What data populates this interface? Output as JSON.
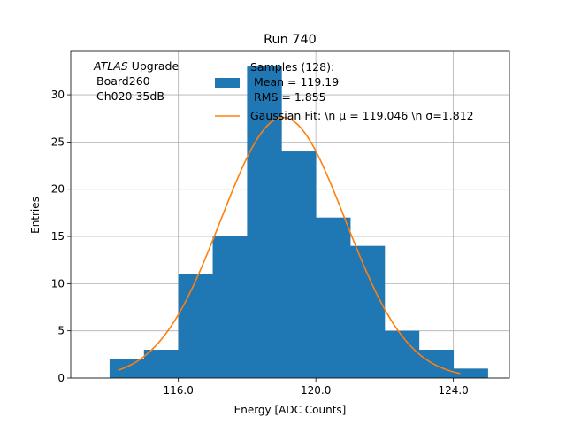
{
  "chart_data": {
    "type": "bar",
    "title": "Run 740",
    "xlabel": "Energy [ADC Counts]",
    "ylabel": "Entries",
    "xlim": [
      112.87,
      125.63
    ],
    "ylim": [
      0,
      34.6
    ],
    "xticks": [
      116.0,
      120.0,
      124.0
    ],
    "xtick_labels": [
      "116.0",
      "120.0",
      "124.0"
    ],
    "yticks": [
      0,
      5,
      10,
      15,
      20,
      25,
      30
    ],
    "ytick_labels": [
      "0",
      "5",
      "10",
      "15",
      "20",
      "25",
      "30"
    ],
    "grid": true,
    "bins": {
      "edges": [
        114.0,
        115.0,
        116.0,
        117.0,
        118.0,
        119.0,
        120.0,
        121.0,
        122.0,
        123.0,
        124.0,
        125.0
      ],
      "counts": [
        2,
        3,
        11,
        15,
        33,
        24,
        17,
        14,
        5,
        3,
        1
      ],
      "color": "#1f77b4"
    },
    "fit": {
      "mu": 119.046,
      "sigma": 1.812,
      "amplitude": 27.6,
      "x_range": [
        114.25,
        124.2
      ],
      "color": "#ff7f0e"
    },
    "legend": {
      "position": "top-right",
      "samples_line1": "Samples (128):",
      "samples_line2": "Mean = 119.19",
      "samples_line3": "RMS = 1.855",
      "fit_label": "Gaussian Fit: \\n μ = 119.046 \\n σ=1.812"
    },
    "annotation": {
      "line1_italic": "ATLAS",
      "line1_rest": " Upgrade",
      "line2": "Board260",
      "line3": "Ch020 35dB"
    }
  }
}
